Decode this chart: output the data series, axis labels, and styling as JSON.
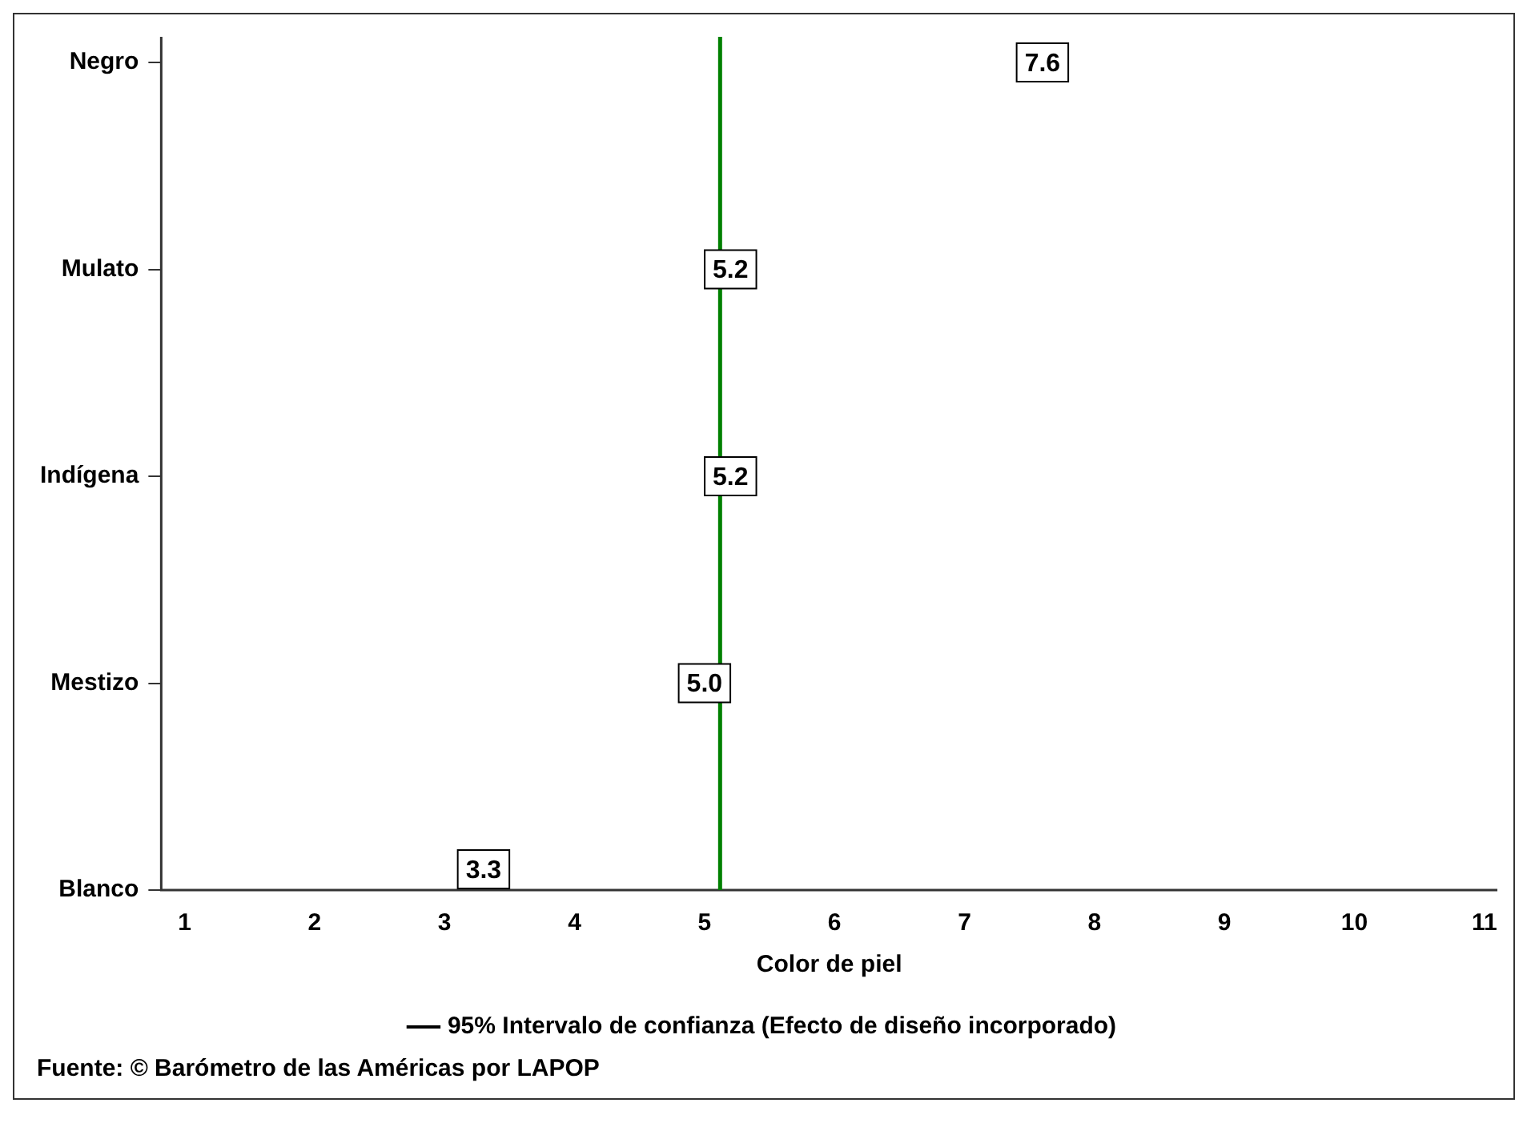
{
  "chart_data": {
    "type": "scatter",
    "orientation": "horizontal",
    "categories": [
      "Negro",
      "Mulato",
      "Indígena",
      "Mestizo",
      "Blanco"
    ],
    "series": [
      {
        "name": "95% Intervalo de confianza (Efecto de diseño incorporado)",
        "color": "#000000",
        "values": [
          7.6,
          5.2,
          5.2,
          5.0,
          3.3
        ],
        "value_labels": [
          "7.6",
          "5.2",
          "5.2",
          "5.0",
          "3.3"
        ]
      }
    ],
    "xlabel": "Color de piel",
    "xlim": [
      0.82,
      11.1
    ],
    "xticks": [
      1,
      2,
      3,
      4,
      5,
      6,
      7,
      8,
      9,
      10,
      11
    ],
    "ref_lines": [
      {
        "axis": "x",
        "value": 5.12,
        "color": "#008000"
      }
    ],
    "grid": false,
    "legend": "bottom",
    "annotations": [
      "Fuente: © Barómetro de las Américas por LAPOP"
    ]
  }
}
